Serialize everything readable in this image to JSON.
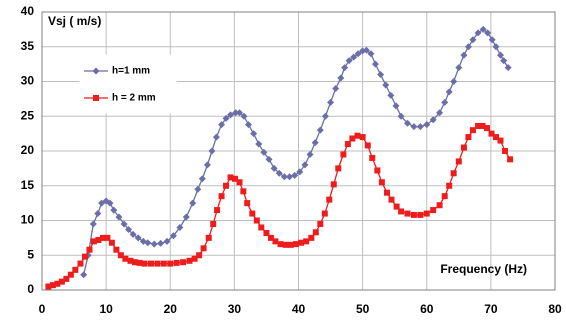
{
  "chart_data": {
    "type": "line",
    "ylabel": "Vsj  ( m/s)",
    "xlabel": "Frequency (Hz)",
    "xlim": [
      0,
      80
    ],
    "xticks": [
      0,
      10,
      20,
      30,
      40,
      50,
      60,
      70,
      80
    ],
    "ylim": [
      0,
      40
    ],
    "yticks": [
      0,
      5,
      10,
      15,
      20,
      25,
      30,
      35,
      40
    ],
    "grid": true,
    "legend": "upper left",
    "series": [
      {
        "name": "h=1 mm",
        "color": "#6b6fa8",
        "marker": "diamond",
        "x": [
          6.5,
          7.2,
          8,
          8.7,
          9.3,
          10,
          10.6,
          11.2,
          12,
          12.8,
          13.5,
          14.2,
          15,
          15.8,
          16.5,
          17.5,
          18.5,
          19.5,
          20.5,
          21.5,
          22.5,
          23.5,
          24.3,
          25,
          25.8,
          26.5,
          27.2,
          28,
          28.7,
          29.4,
          30.2,
          30.8,
          31.5,
          32.2,
          33,
          33.8,
          34.6,
          35.4,
          36.2,
          37,
          37.8,
          38.6,
          39.4,
          40.2,
          41,
          41.8,
          42.6,
          43.4,
          44.2,
          45,
          45.8,
          46.6,
          47.2,
          47.9,
          48.6,
          49.3,
          50,
          50.6,
          51.3,
          52,
          52.8,
          53.6,
          54.4,
          55.2,
          56,
          57,
          58,
          59,
          60,
          61,
          62,
          62.8,
          63.5,
          64.2,
          65,
          65.8,
          66.5,
          67.2,
          68,
          68.8,
          69.5,
          70.2,
          70.8,
          71.5,
          72,
          72.7
        ],
        "values": [
          2.2,
          5,
          9.5,
          11,
          12.5,
          12.8,
          12.5,
          11.5,
          10.5,
          9.5,
          8.7,
          8,
          7.5,
          7,
          6.8,
          6.6,
          6.7,
          7,
          7.8,
          9,
          10.5,
          12.5,
          14.5,
          16,
          18,
          20,
          22,
          23.8,
          24.7,
          25.2,
          25.5,
          25.5,
          25,
          23.8,
          22.5,
          21,
          19.8,
          18.8,
          17.5,
          16.8,
          16.3,
          16.3,
          16.5,
          17,
          18,
          19.5,
          21.2,
          23,
          25,
          27,
          29,
          30.5,
          32,
          33,
          33.5,
          34,
          34.4,
          34.5,
          34,
          32.5,
          31,
          29.5,
          28,
          26.5,
          25,
          24,
          23.5,
          23.5,
          23.8,
          24.5,
          25.5,
          27,
          28.5,
          30,
          32,
          33.8,
          35,
          36,
          37,
          37.5,
          37,
          36,
          35,
          33.8,
          33,
          32
        ]
      },
      {
        "name": "h = 2 mm",
        "color": "#ee1c1c",
        "marker": "square",
        "x": [
          1,
          1.7,
          2.4,
          3.1,
          3.8,
          4.5,
          5.2,
          6,
          6.7,
          7.4,
          8.1,
          8.8,
          9.5,
          10.2,
          10.9,
          11.6,
          12.3,
          13,
          13.8,
          14.5,
          15.2,
          16,
          17,
          18,
          19,
          20,
          21,
          22,
          23,
          23.8,
          24.5,
          25.2,
          26,
          26.7,
          27.3,
          28,
          28.7,
          29.4,
          30.1,
          30.8,
          31.4,
          32,
          32.8,
          33.5,
          34.2,
          35,
          35.7,
          36.4,
          37.2,
          38,
          38.8,
          39.6,
          40.4,
          41.2,
          42,
          42.7,
          43.4,
          44.1,
          44.8,
          45.5,
          46.2,
          47,
          47.7,
          48.4,
          49.2,
          50,
          50.8,
          51.5,
          52.3,
          53,
          53.8,
          54.5,
          55.3,
          56,
          57,
          58,
          59,
          60,
          61,
          62,
          62.8,
          63.5,
          64.2,
          65,
          65.8,
          66.5,
          67.2,
          68,
          68.7,
          69.4,
          70.1,
          70.8,
          71.5,
          72.2,
          73
        ],
        "values": [
          0.5,
          0.7,
          0.9,
          1.2,
          1.6,
          2.2,
          2.9,
          3.8,
          4.8,
          5.8,
          7,
          7.2,
          7.5,
          7.5,
          6.8,
          5.8,
          5,
          4.5,
          4.2,
          4,
          3.9,
          3.8,
          3.8,
          3.8,
          3.8,
          3.8,
          3.9,
          4,
          4.2,
          4.5,
          5,
          6,
          7.5,
          9.5,
          11.5,
          13.5,
          15,
          16.2,
          16,
          15.5,
          14.2,
          12.5,
          11,
          10,
          9,
          8.2,
          7.5,
          7,
          6.6,
          6.5,
          6.5,
          6.6,
          6.8,
          7,
          7.5,
          8.3,
          9.5,
          11,
          13,
          15.2,
          17.5,
          19.5,
          21,
          21.8,
          22.2,
          22,
          20.8,
          19,
          17.2,
          15.5,
          14,
          13,
          12,
          11.3,
          11,
          10.8,
          10.8,
          11,
          11.5,
          12.2,
          13.5,
          15,
          16.8,
          18.5,
          20.5,
          22,
          23,
          23.6,
          23.6,
          23.3,
          22.5,
          22,
          21.5,
          20,
          18.8
        ]
      }
    ]
  }
}
